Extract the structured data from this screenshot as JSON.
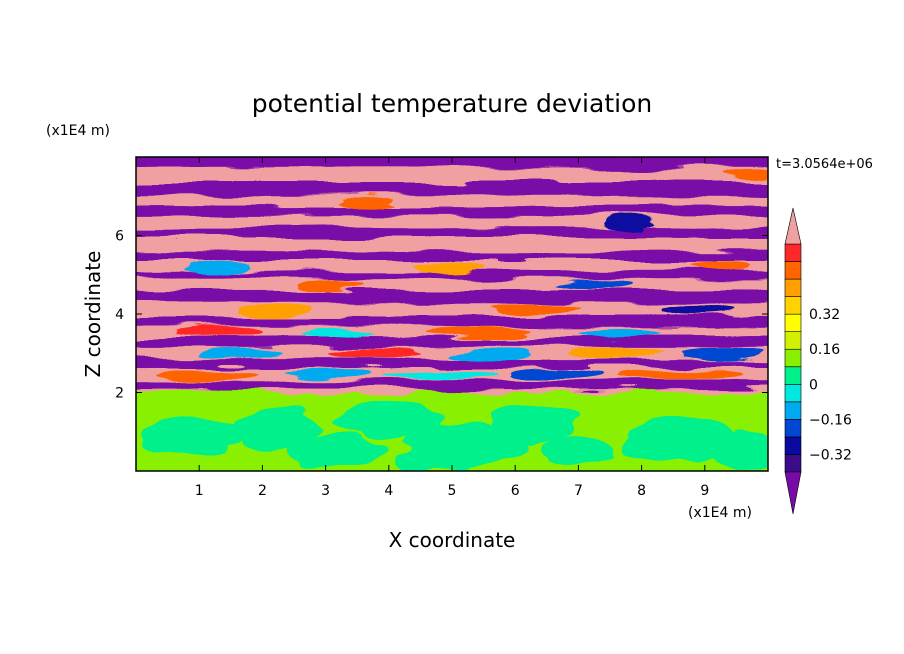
{
  "chart_data": {
    "type": "heatmap",
    "title": "potential temperature deviation",
    "xlabel": "X coordinate",
    "ylabel": "Z coordinate",
    "x_unit": "(x1E4 m)",
    "y_unit": "(x1E4 m)",
    "time_label": "t=3.0564e+06",
    "xlim": [
      0,
      10
    ],
    "ylim": [
      0,
      8
    ],
    "x_ticks": [
      "1",
      "2",
      "3",
      "4",
      "5",
      "6",
      "7",
      "8",
      "9"
    ],
    "y_ticks": [
      "2",
      "4",
      "6"
    ],
    "colorbar": {
      "labels": [
        "0.32",
        "0.16",
        "0",
        "-0.16",
        "-0.32"
      ],
      "label_values": [
        0.32,
        0.16,
        0,
        -0.16,
        -0.32
      ],
      "range": [
        -0.48,
        0.48
      ],
      "step": 0.08,
      "colors": [
        "#7a0aa8",
        "#3a0c8a",
        "#0a0aa0",
        "#0046d2",
        "#00aaf0",
        "#00e8e0",
        "#00f08c",
        "#88f000",
        "#d2f000",
        "#ffff00",
        "#ffd200",
        "#ffa000",
        "#ff6400",
        "#ff2828",
        "#f0a0a0"
      ]
    },
    "summary": {
      "lower_layer": "z from 0 to about 2: weak deviations near 0 (green and light green)",
      "upper_layer": "z from about 2 to 8: alternating horizontal bands of strong positive (pink) and strong negative (purple) deviation"
    }
  }
}
